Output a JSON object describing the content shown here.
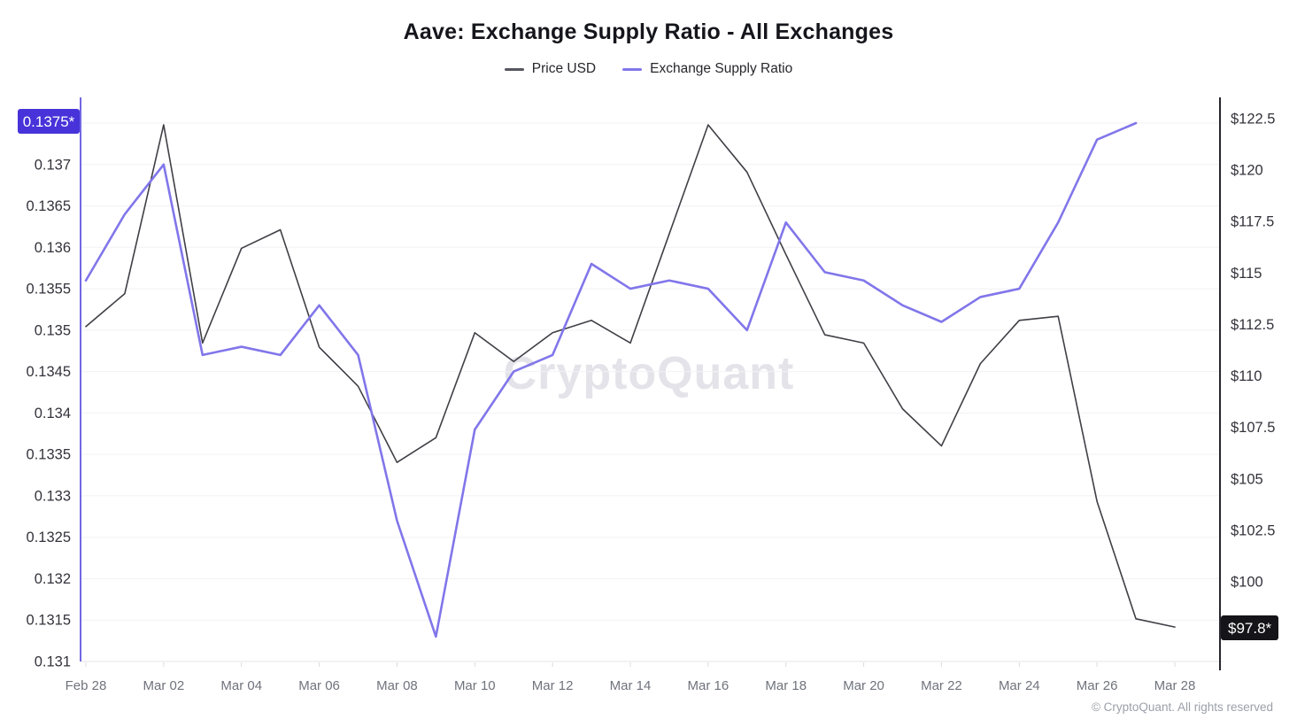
{
  "title": "Aave: Exchange Supply Ratio - All Exchanges",
  "legend": {
    "items": [
      {
        "label": "Price USD",
        "color": "#56565e"
      },
      {
        "label": "Exchange Supply Ratio",
        "color": "#8176ea"
      }
    ]
  },
  "left_axis": {
    "latest_badge": "0.1375*",
    "badge_color": "#4733d9",
    "axis_line_color": "#7168e4",
    "tick_labels": [
      "0.137",
      "0.1365",
      "0.136",
      "0.1355",
      "0.135",
      "0.1345",
      "0.134",
      "0.1335",
      "0.133",
      "0.1325",
      "0.132",
      "0.1315",
      "0.131"
    ]
  },
  "right_axis": {
    "latest_badge": "$97.8*",
    "badge_color": "#141419",
    "axis_line_color": "#26262e",
    "tick_labels": [
      "$122.5",
      "$120",
      "$117.5",
      "$115",
      "$112.5",
      "$110",
      "$107.5",
      "$105",
      "$102.5",
      "$100"
    ]
  },
  "x_axis": {
    "tick_labels": [
      "Feb 28",
      "Mar 02",
      "Mar 04",
      "Mar 06",
      "Mar 08",
      "Mar 10",
      "Mar 12",
      "Mar 14",
      "Mar 16",
      "Mar 18",
      "Mar 20",
      "Mar 22",
      "Mar 24",
      "Mar 26",
      "Mar 28"
    ]
  },
  "watermark": "CryptoQuant",
  "copyright": "© CryptoQuant. All rights reserved",
  "chart_data": {
    "type": "line",
    "title": "Aave: Exchange Supply Ratio - All Exchanges",
    "x": [
      "Feb 28",
      "Mar 01",
      "Mar 02",
      "Mar 03",
      "Mar 04",
      "Mar 05",
      "Mar 06",
      "Mar 07",
      "Mar 08",
      "Mar 09",
      "Mar 10",
      "Mar 11",
      "Mar 12",
      "Mar 13",
      "Mar 14",
      "Mar 15",
      "Mar 16",
      "Mar 17",
      "Mar 18",
      "Mar 19",
      "Mar 20",
      "Mar 21",
      "Mar 22",
      "Mar 23",
      "Mar 24",
      "Mar 25",
      "Mar 26",
      "Mar 27",
      "Mar 28"
    ],
    "series": [
      {
        "name": "Price USD",
        "yaxis": "right",
        "color": "#3f3f46",
        "width": 1.6,
        "values": [
          112.4,
          114.0,
          122.2,
          111.6,
          116.2,
          117.1,
          111.4,
          109.5,
          105.8,
          107.0,
          112.1,
          110.7,
          112.1,
          112.7,
          111.6,
          116.9,
          122.2,
          119.9,
          115.9,
          112.0,
          111.6,
          108.4,
          106.6,
          110.6,
          112.7,
          112.9,
          103.9,
          98.2,
          97.8
        ]
      },
      {
        "name": "Exchange Supply Ratio",
        "yaxis": "left",
        "color": "#8176ea",
        "width": 2.6,
        "values": [
          0.1356,
          0.1364,
          0.137,
          0.1347,
          0.1348,
          0.1347,
          0.1353,
          0.1347,
          0.1327,
          0.1313,
          0.1338,
          0.1345,
          0.1347,
          0.1358,
          0.1355,
          0.1356,
          0.1355,
          0.135,
          0.1363,
          0.1357,
          0.1356,
          0.1353,
          0.1351,
          0.1354,
          0.1355,
          0.1363,
          0.1373,
          0.1375,
          null
        ]
      }
    ],
    "left_axis_range": [
      0.131,
      0.1375
    ],
    "left_axis_tick_step": 0.0005,
    "right_axis_range": [
      100,
      122.5
    ],
    "right_axis_tick_step": 2.5,
    "latest_values": {
      "left": "0.1375*",
      "right": "$97.8*"
    },
    "grid": true,
    "legend_position": "top"
  }
}
